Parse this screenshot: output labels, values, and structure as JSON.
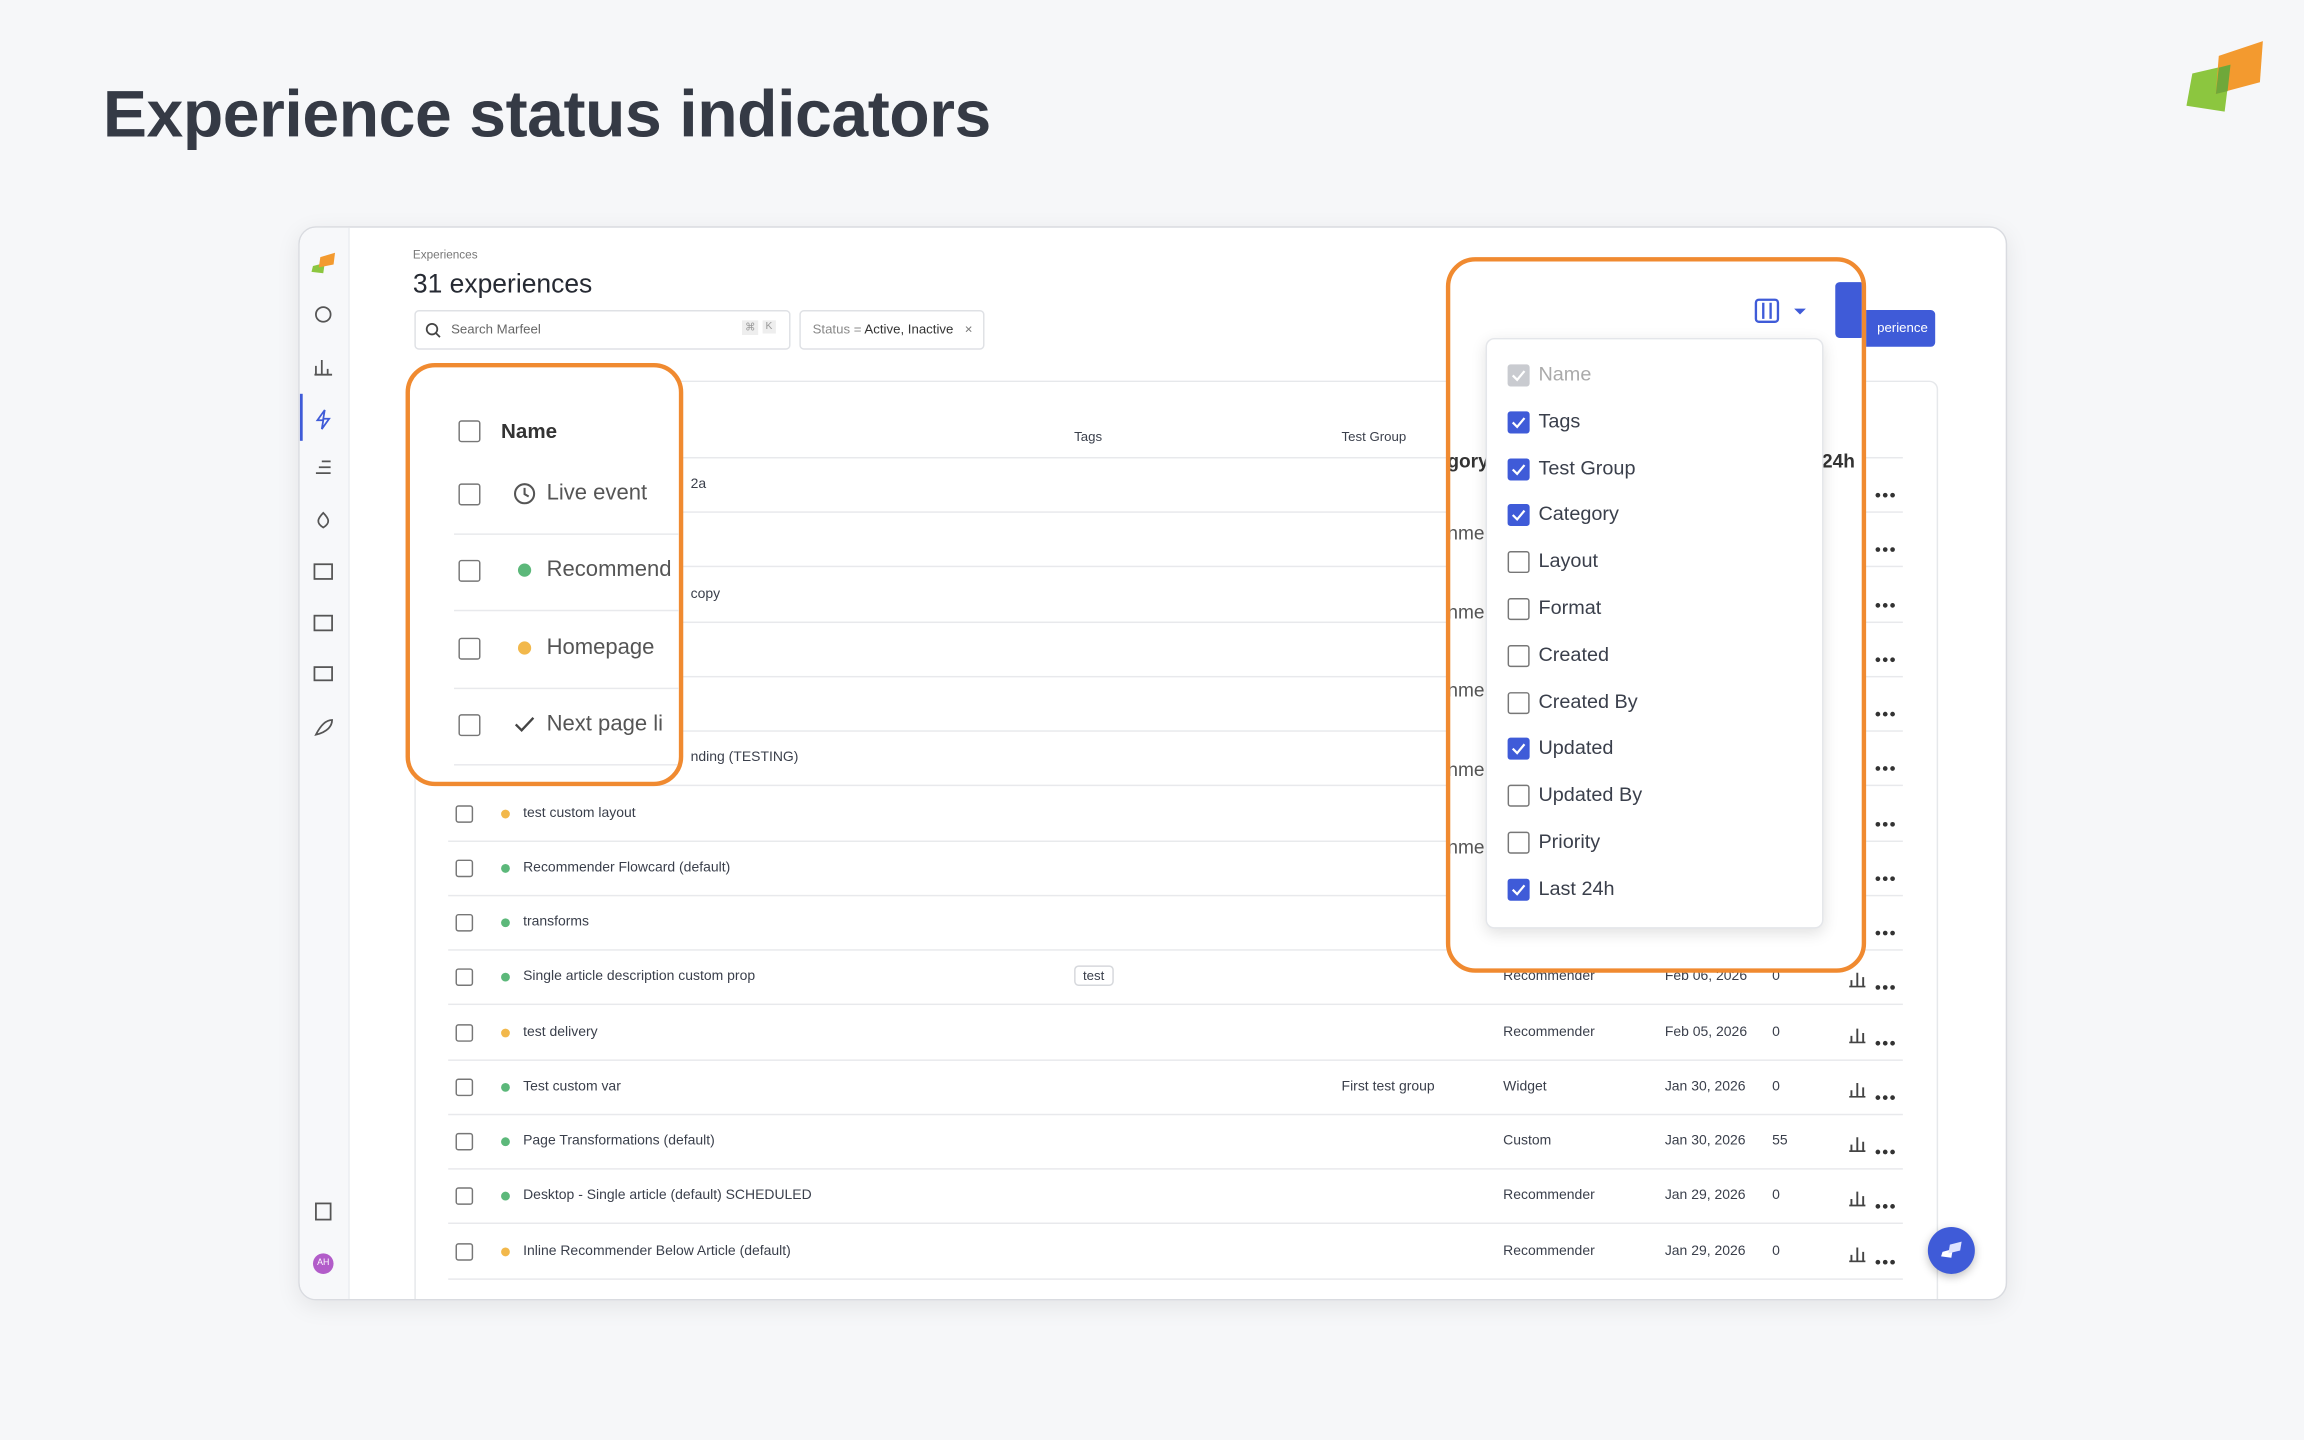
{
  "page": {
    "title": "Experience status indicators"
  },
  "app": {
    "breadcrumb": "Experiences",
    "heading": "31 experiences",
    "search_placeholder": "Search Marfeel",
    "search_shortcut": [
      "⌘",
      "K"
    ],
    "filter": {
      "label": "Status =",
      "value": "Active, Inactive"
    },
    "button": "perience",
    "avatar": "AH"
  },
  "table": {
    "headers": {
      "tags": "Tags",
      "test_group": "Test Group"
    },
    "rows": [
      {
        "name": "2a"
      },
      {},
      {
        "name": "copy"
      },
      {},
      {},
      {
        "name": "nding (TESTING)"
      },
      {
        "name": "test custom layout",
        "status_color": "#f2b84b"
      },
      {
        "name": "Recommender Flowcard (default)",
        "status_color": "#5cb87a"
      },
      {
        "name": "transforms",
        "status_color": "#5cb87a"
      },
      {
        "name": "Single article description custom prop",
        "status_color": "#5cb87a",
        "tag": "test",
        "category": "Recommender",
        "updated": "Feb 06, 2026",
        "last_24h": "0"
      },
      {
        "name": "test delivery",
        "status_color": "#f2b84b",
        "category": "Recommender",
        "updated": "Feb 05, 2026",
        "last_24h": "0"
      },
      {
        "name": "Test custom var",
        "status_color": "#5cb87a",
        "test_group": "First test group",
        "category": "Widget",
        "updated": "Jan 30, 2026",
        "last_24h": "0"
      },
      {
        "name": "Page Transformations (default)",
        "status_color": "#5cb87a",
        "category": "Custom",
        "updated": "Jan 30, 2026",
        "last_24h": "55"
      },
      {
        "name": "Desktop - Single article (default) SCHEDULED",
        "status_color": "#5cb87a",
        "category": "Recommender",
        "updated": "Jan 29, 2026",
        "last_24h": "0"
      },
      {
        "name": "Inline Recommender Below Article (default)",
        "status_color": "#f2b84b",
        "category": "Recommender",
        "updated": "Jan 29, 2026",
        "last_24h": "0"
      }
    ]
  },
  "name_callout": {
    "header": "Name",
    "rows": [
      {
        "icon": "clock",
        "label": "Live event"
      },
      {
        "icon": "dot",
        "color": "#5cb87a",
        "label": "Recommend"
      },
      {
        "icon": "dot",
        "color": "#f2b84b",
        "label": "Homepage"
      },
      {
        "icon": "check",
        "label": "Next page li"
      }
    ]
  },
  "columns_callout": {
    "category_header": "gory",
    "last_24h_header": "24h",
    "category_cells": [
      "nme",
      "nme",
      "nme",
      "nme",
      "nme"
    ],
    "columns": [
      {
        "label": "Name",
        "checked": true,
        "disabled": true
      },
      {
        "label": "Tags",
        "checked": true
      },
      {
        "label": "Test Group",
        "checked": true
      },
      {
        "label": "Category",
        "checked": true
      },
      {
        "label": "Layout",
        "checked": false
      },
      {
        "label": "Format",
        "checked": false
      },
      {
        "label": "Created",
        "checked": false
      },
      {
        "label": "Created By",
        "checked": false
      },
      {
        "label": "Updated",
        "checked": true
      },
      {
        "label": "Updated By",
        "checked": false
      },
      {
        "label": "Priority",
        "checked": false
      },
      {
        "label": "Last 24h",
        "checked": true
      }
    ]
  }
}
